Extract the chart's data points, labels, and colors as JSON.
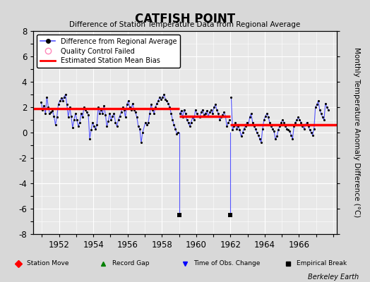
{
  "title": "CATFISH POINT",
  "subtitle": "Difference of Station Temperature Data from Regional Average",
  "ylabel": "Monthly Temperature Anomaly Difference (°C)",
  "credit": "Berkeley Earth",
  "ylim": [
    -8,
    8
  ],
  "xlim": [
    1950.5,
    1968.2
  ],
  "xticks": [
    1952,
    1954,
    1956,
    1958,
    1960,
    1962,
    1964,
    1966
  ],
  "yticks": [
    -8,
    -6,
    -4,
    -2,
    0,
    2,
    4,
    6,
    8
  ],
  "bg_color": "#e8e8e8",
  "fig_bg_color": "#d8d8d8",
  "grid_color": "white",
  "line_color": "#5555ff",
  "dot_color": "black",
  "bias_color": "red",
  "bias_linewidth": 2.5,
  "segments": [
    {
      "x_start": 1950.5,
      "x_end": 1959.0,
      "bias": 1.9
    },
    {
      "x_start": 1959.0,
      "x_end": 1962.0,
      "bias": 1.3
    },
    {
      "x_start": 1962.0,
      "x_end": 1968.2,
      "bias": 0.6
    }
  ],
  "time_of_obs_changes": [
    1959.0,
    1962.0
  ],
  "spike_bottom": -6.5,
  "empirical_break_y": -6.5,
  "data": [
    [
      1950.958,
      2.4
    ],
    [
      1951.042,
      1.8
    ],
    [
      1951.125,
      2.1
    ],
    [
      1951.208,
      1.5
    ],
    [
      1951.292,
      2.8
    ],
    [
      1951.375,
      2.0
    ],
    [
      1951.458,
      1.5
    ],
    [
      1951.542,
      1.6
    ],
    [
      1951.625,
      1.7
    ],
    [
      1951.708,
      1.3
    ],
    [
      1951.792,
      0.6
    ],
    [
      1951.875,
      1.2
    ],
    [
      1951.958,
      2.2
    ],
    [
      1952.042,
      2.5
    ],
    [
      1952.125,
      2.7
    ],
    [
      1952.208,
      2.5
    ],
    [
      1952.292,
      2.8
    ],
    [
      1952.375,
      3.0
    ],
    [
      1952.458,
      2.2
    ],
    [
      1952.542,
      1.2
    ],
    [
      1952.625,
      2.0
    ],
    [
      1952.708,
      1.3
    ],
    [
      1952.792,
      0.4
    ],
    [
      1952.875,
      1.0
    ],
    [
      1952.958,
      1.5
    ],
    [
      1953.042,
      1.0
    ],
    [
      1953.125,
      0.5
    ],
    [
      1953.208,
      0.8
    ],
    [
      1953.292,
      1.5
    ],
    [
      1953.375,
      1.2
    ],
    [
      1953.458,
      2.0
    ],
    [
      1953.542,
      1.8
    ],
    [
      1953.625,
      1.6
    ],
    [
      1953.708,
      1.4
    ],
    [
      1953.792,
      -0.5
    ],
    [
      1953.875,
      0.2
    ],
    [
      1953.958,
      0.8
    ],
    [
      1954.042,
      0.5
    ],
    [
      1954.125,
      0.3
    ],
    [
      1954.208,
      0.6
    ],
    [
      1954.292,
      2.0
    ],
    [
      1954.375,
      1.5
    ],
    [
      1954.458,
      1.8
    ],
    [
      1954.542,
      1.5
    ],
    [
      1954.625,
      2.1
    ],
    [
      1954.708,
      1.4
    ],
    [
      1954.792,
      0.5
    ],
    [
      1954.875,
      0.9
    ],
    [
      1954.958,
      1.5
    ],
    [
      1955.042,
      1.0
    ],
    [
      1955.125,
      1.3
    ],
    [
      1955.208,
      1.5
    ],
    [
      1955.292,
      0.8
    ],
    [
      1955.375,
      0.5
    ],
    [
      1955.458,
      1.0
    ],
    [
      1955.542,
      1.3
    ],
    [
      1955.625,
      1.6
    ],
    [
      1955.708,
      2.0
    ],
    [
      1955.792,
      1.8
    ],
    [
      1955.875,
      1.2
    ],
    [
      1955.958,
      2.2
    ],
    [
      1956.042,
      2.5
    ],
    [
      1956.125,
      2.0
    ],
    [
      1956.208,
      1.8
    ],
    [
      1956.292,
      2.3
    ],
    [
      1956.375,
      1.8
    ],
    [
      1956.458,
      1.6
    ],
    [
      1956.542,
      1.2
    ],
    [
      1956.625,
      0.5
    ],
    [
      1956.708,
      0.3
    ],
    [
      1956.792,
      -0.8
    ],
    [
      1956.875,
      0.0
    ],
    [
      1957.042,
      0.8
    ],
    [
      1957.125,
      0.6
    ],
    [
      1957.208,
      0.8
    ],
    [
      1957.292,
      1.5
    ],
    [
      1957.375,
      2.2
    ],
    [
      1957.458,
      1.8
    ],
    [
      1957.542,
      1.5
    ],
    [
      1957.625,
      2.0
    ],
    [
      1957.708,
      2.3
    ],
    [
      1957.792,
      2.5
    ],
    [
      1957.875,
      2.8
    ],
    [
      1957.958,
      2.6
    ],
    [
      1958.042,
      2.8
    ],
    [
      1958.125,
      3.0
    ],
    [
      1958.208,
      2.6
    ],
    [
      1958.292,
      2.5
    ],
    [
      1958.375,
      2.3
    ],
    [
      1958.458,
      2.0
    ],
    [
      1958.542,
      1.5
    ],
    [
      1958.625,
      1.0
    ],
    [
      1958.708,
      0.6
    ],
    [
      1958.792,
      0.3
    ],
    [
      1958.875,
      -0.1
    ],
    [
      1958.958,
      0.0
    ],
    [
      1959.042,
      1.5
    ],
    [
      1959.125,
      1.7
    ],
    [
      1959.208,
      1.2
    ],
    [
      1959.292,
      1.8
    ],
    [
      1959.375,
      1.5
    ],
    [
      1959.458,
      1.0
    ],
    [
      1959.542,
      0.8
    ],
    [
      1959.625,
      0.5
    ],
    [
      1959.708,
      0.8
    ],
    [
      1959.792,
      1.2
    ],
    [
      1959.875,
      1.0
    ],
    [
      1959.958,
      1.8
    ],
    [
      1960.042,
      1.5
    ],
    [
      1960.125,
      1.3
    ],
    [
      1960.208,
      1.2
    ],
    [
      1960.292,
      1.6
    ],
    [
      1960.375,
      1.8
    ],
    [
      1960.458,
      1.4
    ],
    [
      1960.542,
      1.5
    ],
    [
      1960.625,
      1.7
    ],
    [
      1960.708,
      1.3
    ],
    [
      1960.792,
      1.6
    ],
    [
      1960.875,
      1.8
    ],
    [
      1960.958,
      1.5
    ],
    [
      1961.042,
      2.0
    ],
    [
      1961.125,
      2.2
    ],
    [
      1961.208,
      1.8
    ],
    [
      1961.292,
      1.5
    ],
    [
      1961.375,
      1.0
    ],
    [
      1961.458,
      1.2
    ],
    [
      1961.542,
      1.4
    ],
    [
      1961.625,
      1.6
    ],
    [
      1961.708,
      1.3
    ],
    [
      1961.792,
      0.5
    ],
    [
      1961.875,
      0.8
    ],
    [
      1961.958,
      1.0
    ],
    [
      1962.042,
      2.8
    ],
    [
      1962.125,
      0.2
    ],
    [
      1962.208,
      0.5
    ],
    [
      1962.292,
      0.8
    ],
    [
      1962.375,
      0.3
    ],
    [
      1962.458,
      0.5
    ],
    [
      1962.542,
      0.2
    ],
    [
      1962.625,
      -0.3
    ],
    [
      1962.708,
      0.0
    ],
    [
      1962.792,
      0.3
    ],
    [
      1962.875,
      0.5
    ],
    [
      1962.958,
      0.8
    ],
    [
      1963.042,
      0.6
    ],
    [
      1963.125,
      1.2
    ],
    [
      1963.208,
      1.5
    ],
    [
      1963.292,
      0.8
    ],
    [
      1963.375,
      0.5
    ],
    [
      1963.458,
      0.3
    ],
    [
      1963.542,
      0.0
    ],
    [
      1963.625,
      -0.2
    ],
    [
      1963.708,
      -0.5
    ],
    [
      1963.792,
      -0.8
    ],
    [
      1963.875,
      0.3
    ],
    [
      1963.958,
      1.0
    ],
    [
      1964.042,
      1.3
    ],
    [
      1964.125,
      1.5
    ],
    [
      1964.208,
      1.2
    ],
    [
      1964.292,
      0.8
    ],
    [
      1964.375,
      0.5
    ],
    [
      1964.458,
      0.3
    ],
    [
      1964.542,
      0.1
    ],
    [
      1964.625,
      -0.5
    ],
    [
      1964.708,
      -0.3
    ],
    [
      1964.792,
      0.2
    ],
    [
      1964.875,
      0.5
    ],
    [
      1964.958,
      0.8
    ],
    [
      1965.042,
      1.0
    ],
    [
      1965.125,
      0.8
    ],
    [
      1965.208,
      0.5
    ],
    [
      1965.292,
      0.3
    ],
    [
      1965.375,
      0.2
    ],
    [
      1965.458,
      0.1
    ],
    [
      1965.542,
      -0.2
    ],
    [
      1965.625,
      -0.5
    ],
    [
      1965.708,
      0.5
    ],
    [
      1965.792,
      0.8
    ],
    [
      1965.875,
      1.0
    ],
    [
      1965.958,
      1.2
    ],
    [
      1966.042,
      1.0
    ],
    [
      1966.125,
      0.8
    ],
    [
      1966.208,
      0.5
    ],
    [
      1966.292,
      0.3
    ],
    [
      1966.375,
      0.6
    ],
    [
      1966.458,
      0.8
    ],
    [
      1966.542,
      0.5
    ],
    [
      1966.625,
      0.2
    ],
    [
      1966.708,
      0.0
    ],
    [
      1966.792,
      -0.2
    ],
    [
      1966.875,
      0.3
    ],
    [
      1966.958,
      2.0
    ],
    [
      1967.042,
      2.2
    ],
    [
      1967.125,
      2.5
    ],
    [
      1967.208,
      1.8
    ],
    [
      1967.292,
      1.5
    ],
    [
      1967.375,
      1.2
    ],
    [
      1967.458,
      1.0
    ],
    [
      1967.542,
      2.3
    ],
    [
      1967.625,
      2.0
    ],
    [
      1967.708,
      1.8
    ]
  ]
}
